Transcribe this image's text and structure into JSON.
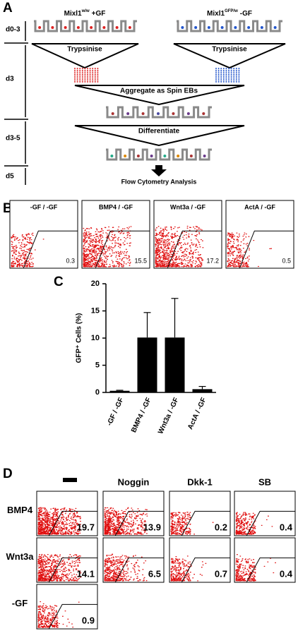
{
  "panel_a": {
    "label": "A",
    "stages": [
      "d0-3",
      "d3",
      "d3-5",
      "d5"
    ],
    "left_line": {
      "gene": "Mixl1",
      "genotype": "w/w",
      "condition": "+GF"
    },
    "right_line": {
      "gene": "Mixl1",
      "genotype": "GFP/w",
      "condition": "-GF"
    },
    "steps": [
      "Trypsinise",
      "Trypsinise",
      "Aggregate as Spin EBs",
      "Differentiate",
      "Flow Cytometry Analysis"
    ]
  },
  "panel_b": {
    "label": "B",
    "plots": [
      {
        "title": "-GF / -GF",
        "value": 0.3
      },
      {
        "title": "BMP4 / -GF",
        "value": 15.5
      },
      {
        "title": "Wnt3a / -GF",
        "value": 17.2
      },
      {
        "title": "ActA / -GF",
        "value": 0.5
      }
    ]
  },
  "chart_data": {
    "type": "bar",
    "label": "C",
    "y_label": "GFP⁺ Cells (%)",
    "categories": [
      "-GF / -GF",
      "BMP4 / -GF",
      "Wnt3a / -GF",
      "ActA / -GF"
    ],
    "values": [
      0.3,
      10.1,
      10.1,
      0.6
    ],
    "errors": [
      0.1,
      4.6,
      7.2,
      0.5
    ],
    "color": "#000000",
    "ylim": [
      0,
      20
    ],
    "yticks": [
      0,
      5,
      10,
      15,
      20
    ]
  },
  "panel_d": {
    "label": "D",
    "columns": [
      "Noggin",
      "Dkk-1",
      "SB"
    ],
    "rows": [
      {
        "label": "BMP4",
        "values": [
          19.7,
          13.9,
          0.2,
          0.4
        ]
      },
      {
        "label": "Wnt3a",
        "values": [
          14.1,
          6.5,
          0.7,
          0.4
        ]
      },
      {
        "label": "-GF",
        "values": [
          0.9
        ]
      }
    ]
  }
}
